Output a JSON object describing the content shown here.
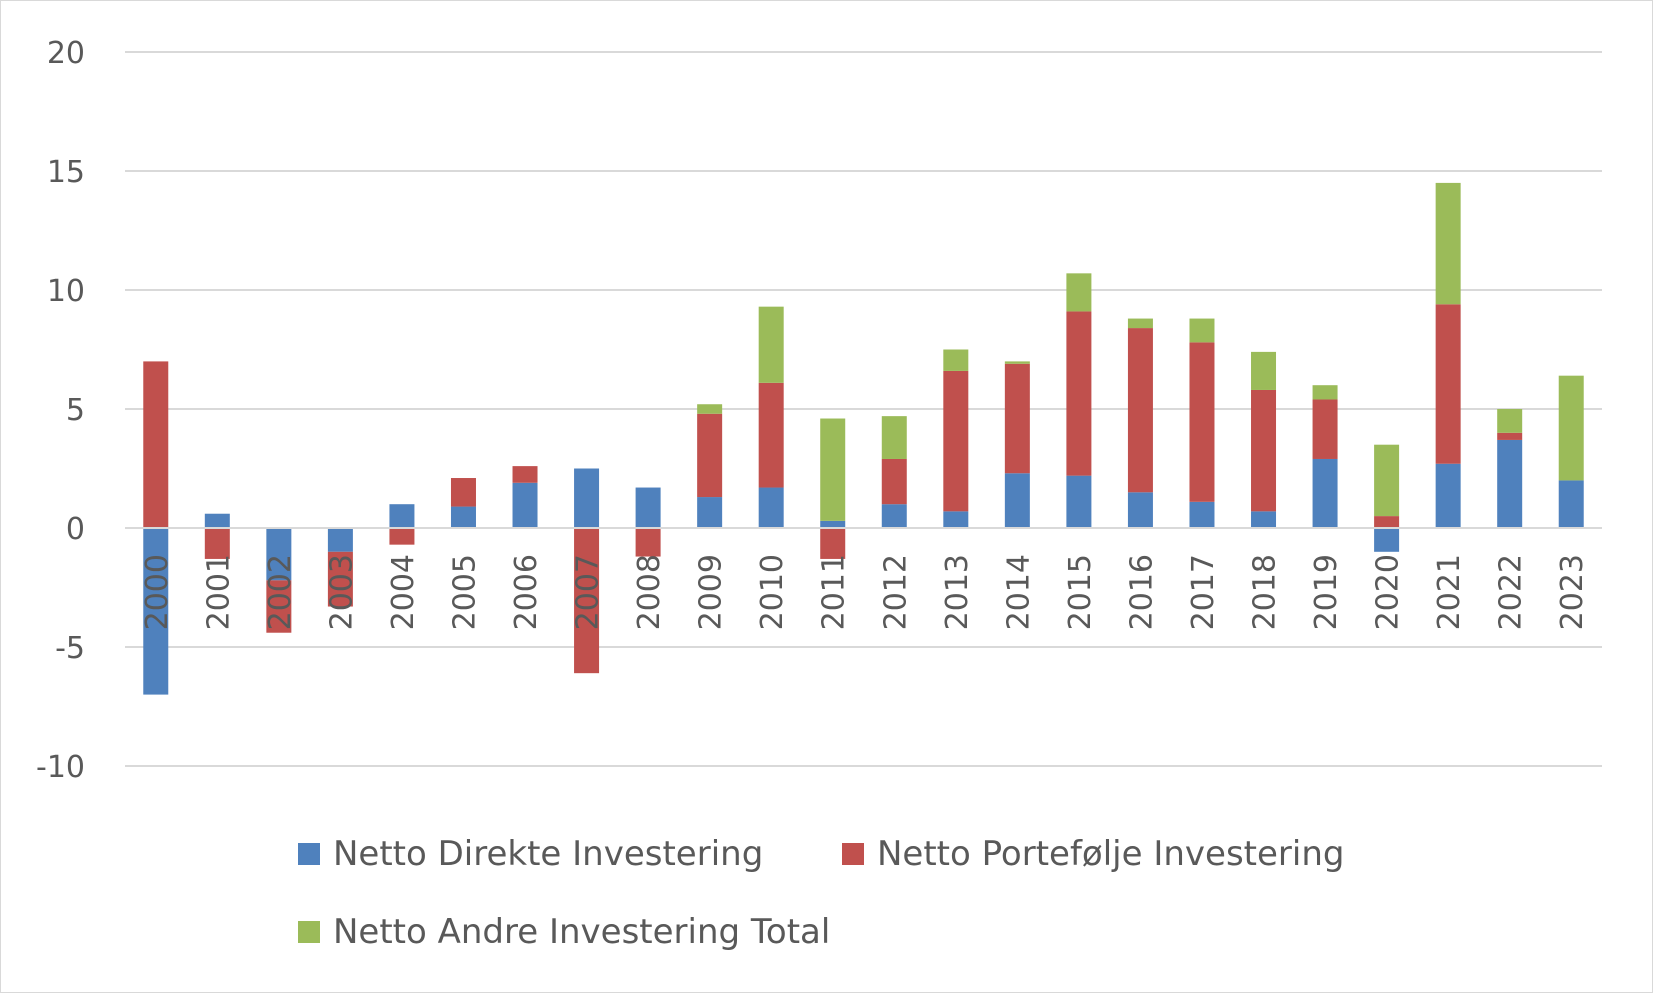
{
  "chart_data": {
    "type": "bar",
    "stacked": true,
    "categories": [
      "2000",
      "2001",
      "2002",
      "2003",
      "2004",
      "2005",
      "2006",
      "2007",
      "2008",
      "2009",
      "2010",
      "2011",
      "2012",
      "2013",
      "2014",
      "2015",
      "2016",
      "2017",
      "2018",
      "2019",
      "2020",
      "2021",
      "2022",
      "2023"
    ],
    "series": [
      {
        "name": "Netto Direkte Investering",
        "color": "#4f81bd",
        "values": [
          -7.0,
          0.6,
          -2.2,
          -1.0,
          1.0,
          0.9,
          1.9,
          2.5,
          1.7,
          1.3,
          1.7,
          0.3,
          1.0,
          0.7,
          2.3,
          2.2,
          1.5,
          1.1,
          0.7,
          2.9,
          -1.0,
          2.7,
          3.7,
          2.0
        ]
      },
      {
        "name": "Netto Portefølje Investering",
        "color": "#c0504d",
        "values": [
          7.0,
          -1.3,
          -2.2,
          -2.3,
          -0.7,
          1.2,
          0.7,
          -6.1,
          -1.2,
          3.5,
          4.4,
          -1.3,
          1.9,
          5.9,
          4.6,
          6.9,
          6.9,
          6.7,
          5.1,
          2.5,
          0.5,
          6.7,
          0.3,
          0.0
        ]
      },
      {
        "name": "Netto Andre Investering Total",
        "color": "#9bbb59",
        "values": [
          0.0,
          0.0,
          0.0,
          0.0,
          0.0,
          0.0,
          0.0,
          0.0,
          0.0,
          0.4,
          3.2,
          4.3,
          1.8,
          0.9,
          0.1,
          1.6,
          0.4,
          1.0,
          1.6,
          0.6,
          3.0,
          5.1,
          1.0,
          4.4
        ]
      }
    ],
    "ylim": [
      -10,
      20
    ],
    "yticks": [
      20,
      15,
      10,
      5,
      0,
      -5,
      -10
    ],
    "grid": true,
    "legend_position": "bottom"
  }
}
